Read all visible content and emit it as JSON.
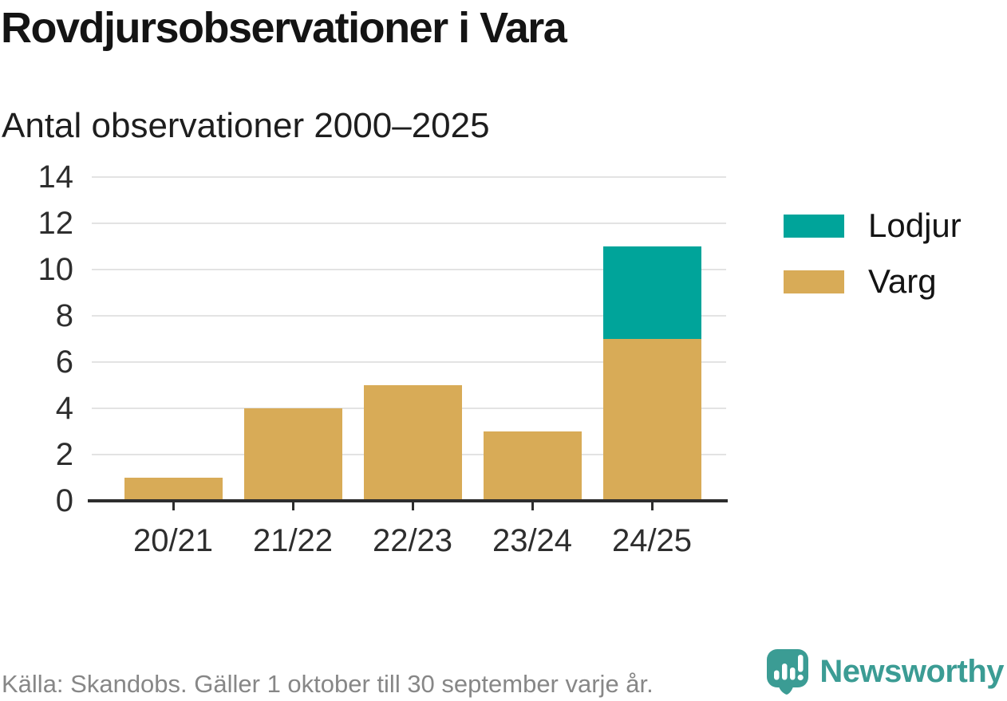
{
  "header": {
    "title": "Rovdjursobservationer i Vara",
    "subtitle": "Antal observationer 2000–2025"
  },
  "legend": [
    {
      "label": "Lodjur",
      "color": "#00a49a"
    },
    {
      "label": "Varg",
      "color": "#d8ab57"
    }
  ],
  "chart_data": {
    "type": "bar",
    "stacked": true,
    "title": "Rovdjursobservationer i Vara",
    "subtitle": "Antal observationer 2000–2025",
    "categories": [
      "20/21",
      "21/22",
      "22/23",
      "23/24",
      "24/25"
    ],
    "series": [
      {
        "name": "Varg",
        "color": "#d8ab57",
        "values": [
          1,
          4,
          5,
          3,
          7
        ]
      },
      {
        "name": "Lodjur",
        "color": "#00a49a",
        "values": [
          0,
          0,
          0,
          0,
          4
        ]
      }
    ],
    "totals": [
      1,
      4,
      5,
      3,
      11
    ],
    "ylim": [
      0,
      14
    ],
    "yticks": [
      0,
      2,
      4,
      6,
      8,
      10,
      12,
      14
    ],
    "xlabel": "",
    "ylabel": "",
    "grid": true,
    "legend_position": "right"
  },
  "footer": {
    "source": "Källa: Skandobs. Gäller 1 oktober till 30 september varje år."
  },
  "branding": {
    "name": "Newsworthy",
    "color": "#3b9c94",
    "icon": "newsworthy-speech-bubble-bar-chart-icon"
  }
}
